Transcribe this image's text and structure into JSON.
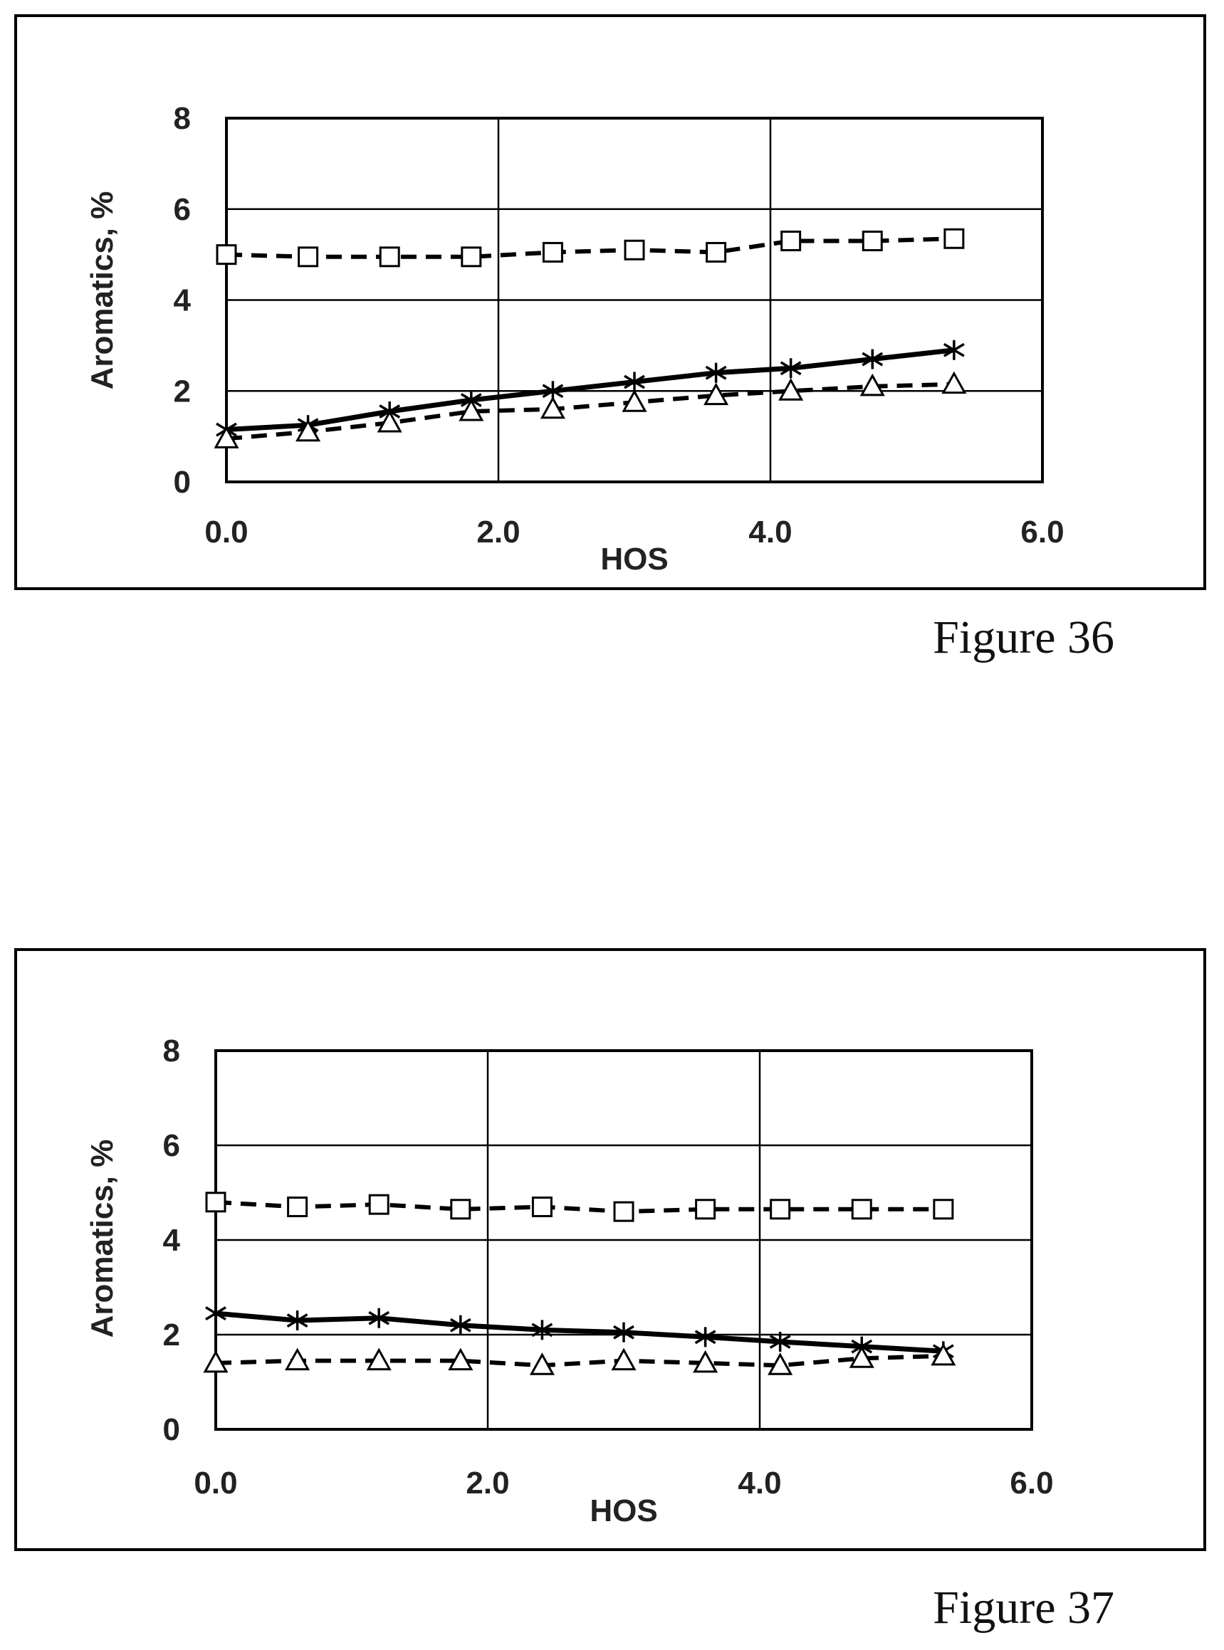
{
  "figures": [
    {
      "caption": "Figure 36",
      "chart_data": {
        "type": "line",
        "xlabel": "HOS",
        "ylabel": "Aromatics, %",
        "xlim": [
          0,
          6
        ],
        "ylim": [
          0,
          8
        ],
        "xticks": [
          "0.0",
          "2.0",
          "4.0",
          "6.0"
        ],
        "yticks": [
          "0",
          "2",
          "4",
          "6",
          "8"
        ],
        "grid": true,
        "x": [
          0.0,
          0.6,
          1.2,
          1.8,
          2.4,
          3.0,
          3.6,
          4.15,
          4.75,
          5.35
        ],
        "series": [
          {
            "marker": "square",
            "line": "dashed",
            "values": [
              5.0,
              4.95,
              4.95,
              4.95,
              5.05,
              5.1,
              5.05,
              5.3,
              5.3,
              5.35
            ]
          },
          {
            "marker": "star",
            "line": "solid",
            "values": [
              1.15,
              1.25,
              1.55,
              1.8,
              2.0,
              2.2,
              2.4,
              2.5,
              2.7,
              2.9
            ]
          },
          {
            "marker": "triangle",
            "line": "dashed",
            "values": [
              0.95,
              1.1,
              1.3,
              1.55,
              1.6,
              1.75,
              1.9,
              2.0,
              2.1,
              2.15
            ]
          }
        ]
      }
    },
    {
      "caption": "Figure 37",
      "chart_data": {
        "type": "line",
        "xlabel": "HOS",
        "ylabel": "Aromatics, %",
        "xlim": [
          0,
          6
        ],
        "ylim": [
          0,
          8
        ],
        "xticks": [
          "0.0",
          "2.0",
          "4.0",
          "6.0"
        ],
        "yticks": [
          "0",
          "2",
          "4",
          "6",
          "8"
        ],
        "grid": true,
        "x": [
          0.0,
          0.6,
          1.2,
          1.8,
          2.4,
          3.0,
          3.6,
          4.15,
          4.75,
          5.35
        ],
        "series": [
          {
            "marker": "square",
            "line": "dashed",
            "values": [
              4.8,
              4.7,
              4.75,
              4.65,
              4.7,
              4.6,
              4.65,
              4.65,
              4.65,
              4.65
            ]
          },
          {
            "marker": "star",
            "line": "solid",
            "values": [
              2.45,
              2.3,
              2.35,
              2.2,
              2.1,
              2.05,
              1.95,
              1.85,
              1.75,
              1.65
            ]
          },
          {
            "marker": "triangle",
            "line": "dashed",
            "values": [
              1.4,
              1.45,
              1.45,
              1.45,
              1.35,
              1.45,
              1.4,
              1.35,
              1.5,
              1.55
            ]
          }
        ]
      }
    }
  ]
}
